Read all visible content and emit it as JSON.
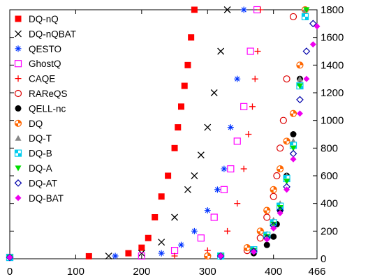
{
  "chart_data": {
    "type": "scatter",
    "xlim": [
      0,
      466
    ],
    "ylim": [
      0,
      1800
    ],
    "x_ticks": [
      0,
      100,
      200,
      300,
      400,
      466
    ],
    "y_ticks": [
      0,
      200,
      400,
      600,
      800,
      1000,
      1200,
      1400,
      1600,
      1800
    ],
    "y_axis_side": "right",
    "grid": false,
    "legend_position": "top-left",
    "series": [
      {
        "name": "DQ-nQ",
        "marker": "square",
        "color": "#ff0000",
        "x": [
          0,
          120,
          180,
          200,
          210,
          220,
          230,
          240,
          250,
          255,
          260,
          265,
          270,
          275,
          280
        ],
        "y": [
          10,
          18,
          40,
          80,
          150,
          300,
          450,
          600,
          800,
          950,
          1100,
          1250,
          1400,
          1600,
          1800
        ]
      },
      {
        "name": "DQ-nQBAT",
        "marker": "cross",
        "color": "#000000",
        "x": [
          0,
          150,
          200,
          230,
          250,
          270,
          280,
          290,
          300,
          310,
          320,
          330
        ],
        "y": [
          10,
          20,
          40,
          120,
          300,
          500,
          600,
          750,
          950,
          1200,
          1500,
          1800
        ]
      },
      {
        "name": "QESTO",
        "marker": "asterisk",
        "color": "#0033ff",
        "x": [
          0,
          160,
          230,
          260,
          280,
          300,
          315,
          325,
          335,
          345,
          355
        ],
        "y": [
          10,
          20,
          40,
          100,
          200,
          350,
          500,
          650,
          950,
          1300,
          1800
        ]
      },
      {
        "name": "GhostQ",
        "marker": "open-square",
        "color": "#ff00ff",
        "x": [
          0,
          200,
          250,
          290,
          310,
          325,
          335,
          345,
          355,
          365,
          375
        ],
        "y": [
          10,
          20,
          60,
          150,
          300,
          500,
          650,
          850,
          1100,
          1500,
          1800
        ]
      },
      {
        "name": "CAQE",
        "marker": "plus",
        "color": "#ff0000",
        "x": [
          0,
          250,
          300,
          330,
          345,
          355,
          362,
          368,
          372,
          376,
          380
        ],
        "y": [
          10,
          20,
          60,
          200,
          400,
          650,
          900,
          1100,
          1300,
          1500,
          1800
        ]
      },
      {
        "name": "RAReQS",
        "marker": "open-circle",
        "color": "#dd0000",
        "x": [
          0,
          300,
          360,
          380,
          390,
          400,
          405,
          410,
          415,
          420,
          430
        ],
        "y": [
          10,
          20,
          60,
          150,
          300,
          450,
          600,
          800,
          1000,
          1300,
          1750
        ]
      },
      {
        "name": "QELL-nc",
        "marker": "filled-circle",
        "color": "#000000",
        "x": [
          0,
          320,
          370,
          390,
          400,
          405,
          410,
          420,
          430,
          440,
          448
        ],
        "y": [
          10,
          15,
          40,
          100,
          160,
          250,
          350,
          600,
          900,
          1300,
          1800
        ]
      },
      {
        "name": "DQ",
        "marker": "quartered-circle",
        "color": "#ff6600",
        "x": [
          0,
          300,
          360,
          380,
          390,
          400,
          410,
          420,
          430,
          440,
          448
        ],
        "y": [
          10,
          20,
          80,
          200,
          350,
          500,
          650,
          850,
          1050,
          1400,
          1800
        ]
      },
      {
        "name": "DQ-T",
        "marker": "triangle",
        "color": "#888888",
        "x": [
          0,
          320,
          370,
          390,
          400,
          410,
          420,
          430,
          440,
          448
        ],
        "y": [
          10,
          20,
          70,
          180,
          280,
          400,
          600,
          850,
          1300,
          1800
        ]
      },
      {
        "name": "DQ-B",
        "marker": "quartered-square",
        "color": "#00ccee",
        "x": [
          0,
          320,
          370,
          390,
          400,
          410,
          420,
          430,
          440,
          448
        ],
        "y": [
          10,
          20,
          65,
          170,
          260,
          380,
          580,
          820,
          1250,
          1750
        ]
      },
      {
        "name": "DQ-A",
        "marker": "triangle-down",
        "color": "#00dd00",
        "x": [
          0,
          320,
          370,
          390,
          400,
          410,
          420,
          430,
          440,
          450
        ],
        "y": [
          10,
          20,
          60,
          160,
          250,
          370,
          560,
          800,
          1250,
          1800
        ]
      },
      {
        "name": "DQ-AT",
        "marker": "open-diamond",
        "color": "#0000aa",
        "x": [
          0,
          320,
          370,
          390,
          400,
          410,
          420,
          430,
          440,
          450,
          460
        ],
        "y": [
          10,
          20,
          55,
          150,
          240,
          350,
          520,
          760,
          1150,
          1500,
          1700
        ]
      },
      {
        "name": "DQ-BAT",
        "marker": "diamond",
        "color": "#ee00ee",
        "x": [
          0,
          320,
          370,
          390,
          400,
          410,
          420,
          430,
          440,
          450,
          460,
          466
        ],
        "y": [
          10,
          20,
          50,
          140,
          220,
          330,
          500,
          720,
          1050,
          1300,
          1550,
          1680
        ]
      }
    ]
  }
}
